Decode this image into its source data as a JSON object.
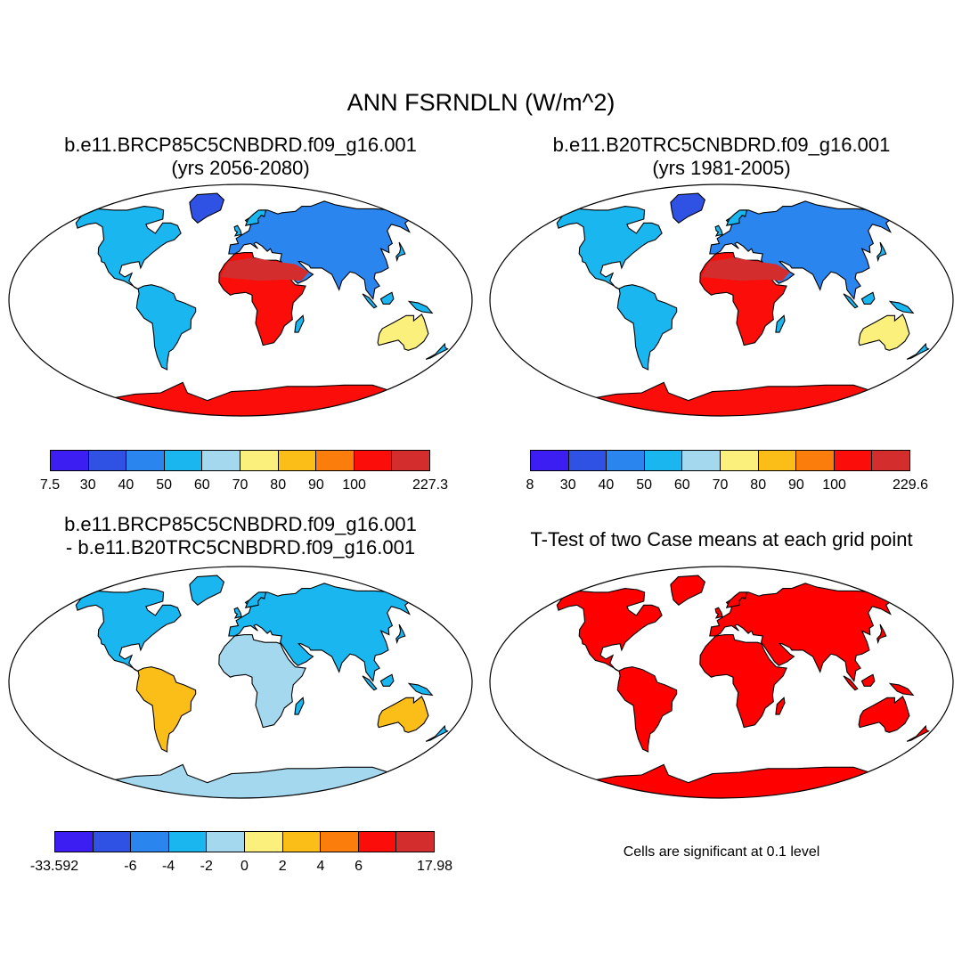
{
  "title": "ANN FSRNDLN (W/m^2)",
  "palette": [
    "#3d1ef2",
    "#2f52e4",
    "#2a86ee",
    "#19b6f0",
    "#a3d8ef",
    "#fbf07c",
    "#fbbd17",
    "#fb7e0c",
    "#fb0d0a",
    "#d42d2d"
  ],
  "significance_color": "#ff0000",
  "panels": [
    {
      "id": "case1",
      "title_line1": "b.e11.BRCP85C5CNBDRD.f09_g16.001",
      "title_line2": "(yrs 2056-2080)",
      "colorbar_labels": [
        "7.5",
        "30",
        "40",
        "50",
        "60",
        "70",
        "80",
        "90",
        "100",
        "227.3"
      ]
    },
    {
      "id": "case2",
      "title_line1": "b.e11.B20TRC5CNBDRD.f09_g16.001",
      "title_line2": "(yrs 1981-2005)",
      "colorbar_labels": [
        "8",
        "30",
        "40",
        "50",
        "60",
        "70",
        "80",
        "90",
        "100",
        "229.6"
      ]
    },
    {
      "id": "diff",
      "title_line1": "b.e11.BRCP85C5CNBDRD.f09_g16.001",
      "title_line2": "- b.e11.B20TRC5CNBDRD.f09_g16.001",
      "colorbar_labels": [
        "-33.592",
        "-6",
        "-4",
        "-2",
        "0",
        "2",
        "4",
        "6",
        "17.98"
      ]
    },
    {
      "id": "ttest",
      "title_line1": "T-Test of two Case means at each grid point",
      "note": "Cells are significant at 0.1 level"
    }
  ]
}
